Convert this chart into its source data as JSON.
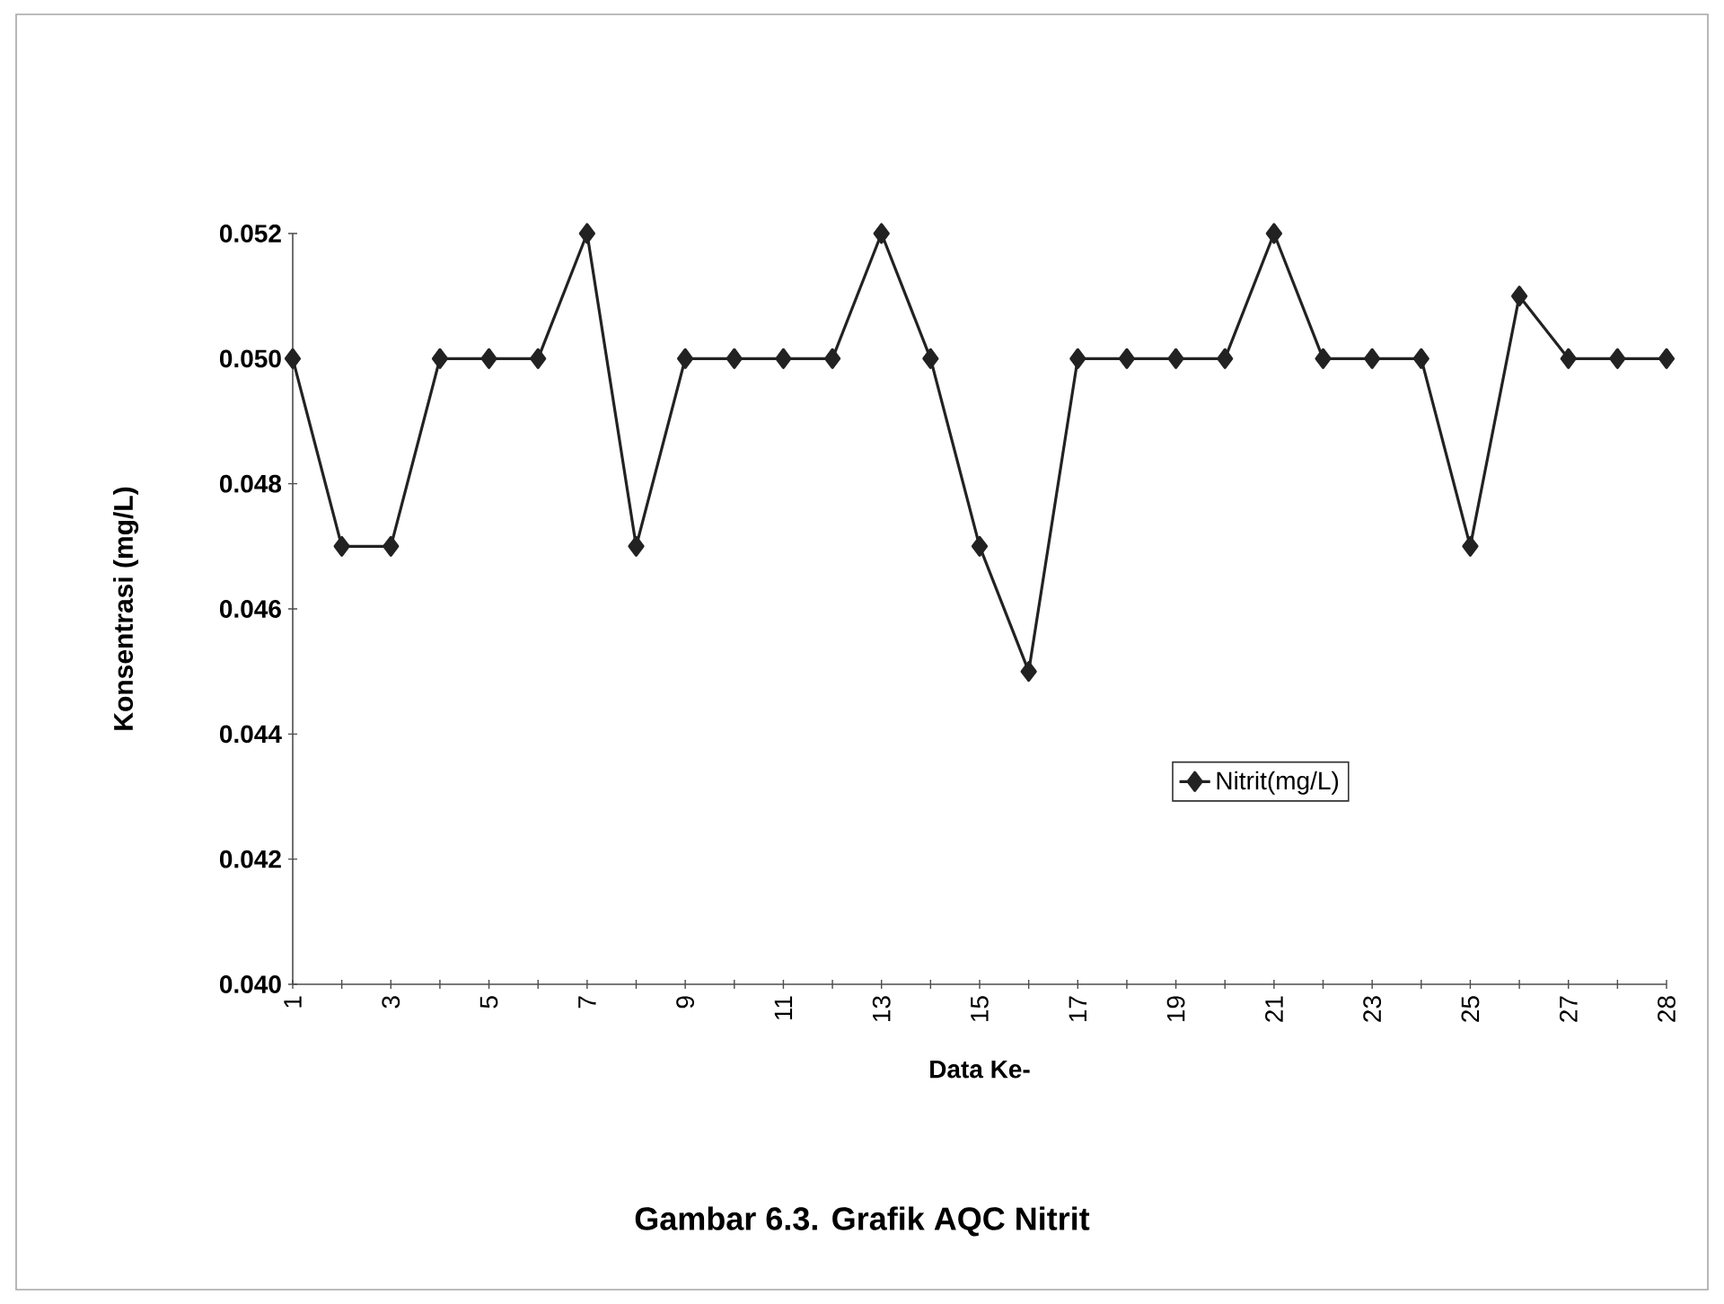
{
  "chart_data": {
    "type": "line",
    "title": "Gambar 6.3.  Grafik AQC Nitrit",
    "xlabel": "Data Ke-",
    "ylabel": "Konsentrasi (mg/L)",
    "categories": [
      "1",
      null,
      "3",
      null,
      "5",
      null,
      "7",
      null,
      "9",
      null,
      "11",
      null,
      "13",
      null,
      "15",
      null,
      "17",
      null,
      "19",
      null,
      "21",
      null,
      "23",
      null,
      "25",
      null,
      "27",
      null,
      "28"
    ],
    "series": [
      {
        "name": "Nitrit(mg/L)",
        "color": "#222222",
        "values": [
          0.05,
          0.047,
          0.047,
          0.05,
          0.05,
          0.05,
          0.052,
          0.047,
          0.05,
          0.05,
          0.05,
          0.05,
          0.052,
          0.05,
          0.047,
          0.045,
          0.05,
          0.05,
          0.05,
          0.05,
          0.052,
          0.05,
          0.05,
          0.05,
          0.047,
          0.051,
          0.05,
          0.05,
          0.05
        ]
      }
    ],
    "ylim": [
      0.04,
      0.052
    ],
    "yticks": [
      {
        "value": 0.04,
        "label": "0.040"
      },
      {
        "value": 0.042,
        "label": "0.042"
      },
      {
        "value": 0.044,
        "label": "0.044"
      },
      {
        "value": 0.046,
        "label": "0.046"
      },
      {
        "value": 0.048,
        "label": "0.048"
      },
      {
        "value": 0.05,
        "label": "0.050"
      },
      {
        "value": 0.052,
        "label": "0.052"
      }
    ],
    "marker": "diamond",
    "line_style": "solid",
    "legend": "right",
    "grid": false
  }
}
